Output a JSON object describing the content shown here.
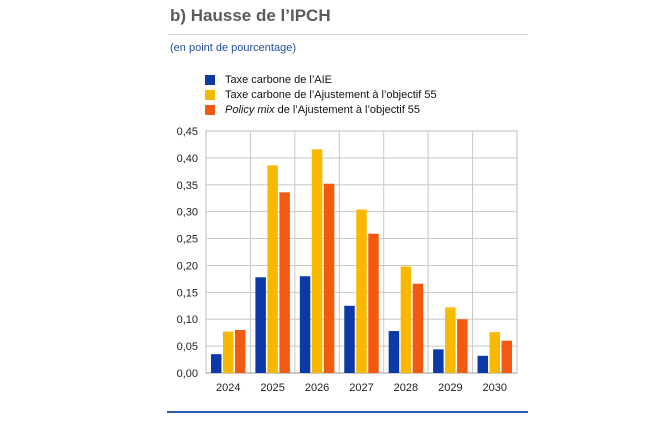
{
  "panel_title": "b) Hausse de l’IPCH",
  "subtitle": "(en point de pourcentage)",
  "legend": [
    {
      "label_pre": "",
      "label_italic": "",
      "label": "Taxe carbone de l’AIE",
      "color": "#0b3aa8"
    },
    {
      "label_pre": "",
      "label_italic": "",
      "label": "Taxe carbone de l’Ajustement à l’objectif 55",
      "color": "#f8b800"
    },
    {
      "label_pre": "",
      "label_italic": "Policy mix",
      "label": " de l’Ajustement à l’objectif 55",
      "color": "#f25a12"
    }
  ],
  "chart_data": {
    "type": "bar",
    "categories": [
      "2024",
      "2025",
      "2026",
      "2027",
      "2028",
      "2029",
      "2030"
    ],
    "series": [
      {
        "name": "Taxe carbone de l’AIE",
        "color": "#0b3aa8",
        "values": [
          0.035,
          0.178,
          0.18,
          0.125,
          0.078,
          0.044,
          0.032
        ]
      },
      {
        "name": "Taxe carbone de l’Ajustement à l’objectif 55",
        "color": "#f8b800",
        "values": [
          0.077,
          0.386,
          0.416,
          0.304,
          0.198,
          0.122,
          0.076
        ]
      },
      {
        "name": "Policy mix de l’Ajustement à l’objectif 55",
        "color": "#f25a12",
        "values": [
          0.08,
          0.336,
          0.352,
          0.259,
          0.166,
          0.1,
          0.06
        ]
      }
    ],
    "ylim": [
      0,
      0.45
    ],
    "yticks": [
      "0,00",
      "0,05",
      "0,10",
      "0,15",
      "0,20",
      "0,25",
      "0,30",
      "0,35",
      "0,40",
      "0,45"
    ],
    "grid": true
  }
}
